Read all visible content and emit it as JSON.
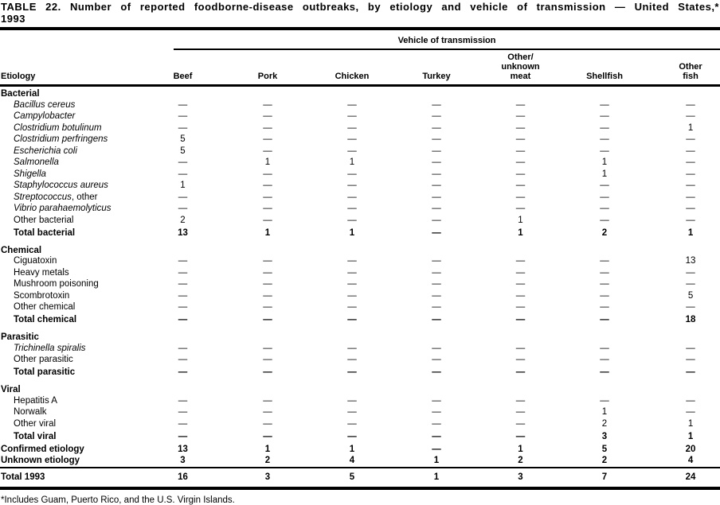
{
  "title": "TABLE 22. Number of reported foodborne-disease outbreaks, by etiology and vehicle of transmission — United States,* 1993",
  "footnote": "*Includes Guam, Puerto Rico, and the U.S. Virgin Islands.",
  "table": {
    "span_header": "Vehicle of transmission",
    "etiology_header": "Etiology",
    "columns": [
      [
        "Beef"
      ],
      [
        "Pork"
      ],
      [
        "Chicken"
      ],
      [
        "Turkey"
      ],
      [
        "Other/",
        "unknown",
        "meat"
      ],
      [
        "Shellfish"
      ],
      [
        "Other",
        "fish"
      ]
    ],
    "sections": [
      {
        "name": "Bacterial",
        "rows": [
          {
            "label": "Bacillus cereus",
            "italic": true,
            "values": [
              "—",
              "—",
              "—",
              "—",
              "—",
              "—",
              "—"
            ]
          },
          {
            "label": "Campylobacter",
            "italic": true,
            "values": [
              "—",
              "—",
              "—",
              "—",
              "—",
              "—",
              "—"
            ]
          },
          {
            "label": "Clostridium botulinum",
            "italic": true,
            "values": [
              "—",
              "—",
              "—",
              "—",
              "—",
              "—",
              "1"
            ]
          },
          {
            "label": "Clostridium perfringens",
            "italic": true,
            "values": [
              "5",
              "—",
              "—",
              "—",
              "—",
              "—",
              "—"
            ]
          },
          {
            "label": "Escherichia coli",
            "italic": true,
            "values": [
              "5",
              "—",
              "—",
              "—",
              "—",
              "—",
              "—"
            ]
          },
          {
            "label": "Salmonella",
            "italic": true,
            "values": [
              "—",
              "1",
              "1",
              "—",
              "—",
              "1",
              "—"
            ]
          },
          {
            "label": "Shigella",
            "italic": true,
            "values": [
              "—",
              "—",
              "—",
              "—",
              "—",
              "1",
              "—"
            ]
          },
          {
            "label": "Staphylococcus aureus",
            "italic": true,
            "values": [
              "1",
              "—",
              "—",
              "—",
              "—",
              "—",
              "—"
            ]
          },
          {
            "label": "Streptococcus",
            "suffix": ", other",
            "italic": true,
            "values": [
              "—",
              "—",
              "—",
              "—",
              "—",
              "—",
              "—"
            ]
          },
          {
            "label": "Vibrio parahaemolyticus",
            "italic": true,
            "values": [
              "—",
              "—",
              "—",
              "—",
              "—",
              "—",
              "—"
            ]
          },
          {
            "label": "Other bacterial",
            "italic": false,
            "values": [
              "2",
              "—",
              "—",
              "—",
              "1",
              "—",
              "—"
            ]
          }
        ],
        "total": {
          "label": "Total bacterial",
          "values": [
            "13",
            "1",
            "1",
            "—",
            "1",
            "2",
            "1"
          ]
        }
      },
      {
        "name": "Chemical",
        "rows": [
          {
            "label": "Ciguatoxin",
            "italic": false,
            "values": [
              "—",
              "—",
              "—",
              "—",
              "—",
              "—",
              "13"
            ]
          },
          {
            "label": "Heavy metals",
            "italic": false,
            "values": [
              "—",
              "—",
              "—",
              "—",
              "—",
              "—",
              "—"
            ]
          },
          {
            "label": "Mushroom poisoning",
            "italic": false,
            "values": [
              "—",
              "—",
              "—",
              "—",
              "—",
              "—",
              "—"
            ]
          },
          {
            "label": "Scombrotoxin",
            "italic": false,
            "values": [
              "—",
              "—",
              "—",
              "—",
              "—",
              "—",
              "5"
            ]
          },
          {
            "label": "Other chemical",
            "italic": false,
            "values": [
              "—",
              "—",
              "—",
              "—",
              "—",
              "—",
              "—"
            ]
          }
        ],
        "total": {
          "label": "Total chemical",
          "values": [
            "—",
            "—",
            "—",
            "—",
            "—",
            "—",
            "18"
          ]
        }
      },
      {
        "name": "Parasitic",
        "rows": [
          {
            "label": "Trichinella spiralis",
            "italic": true,
            "values": [
              "—",
              "—",
              "—",
              "—",
              "—",
              "—",
              "—"
            ]
          },
          {
            "label": "Other parasitic",
            "italic": false,
            "values": [
              "—",
              "—",
              "—",
              "—",
              "—",
              "—",
              "—"
            ]
          }
        ],
        "total": {
          "label": "Total parasitic",
          "values": [
            "—",
            "—",
            "—",
            "—",
            "—",
            "—",
            "—"
          ]
        }
      },
      {
        "name": "Viral",
        "rows": [
          {
            "label": "Hepatitis A",
            "italic": false,
            "values": [
              "—",
              "—",
              "—",
              "—",
              "—",
              "—",
              "—"
            ]
          },
          {
            "label": "Norwalk",
            "italic": false,
            "values": [
              "—",
              "—",
              "—",
              "—",
              "—",
              "1",
              "—"
            ]
          },
          {
            "label": "Other viral",
            "italic": false,
            "values": [
              "—",
              "—",
              "—",
              "—",
              "—",
              "2",
              "1"
            ]
          }
        ],
        "total": {
          "label": "Total viral",
          "values": [
            "—",
            "—",
            "—",
            "—",
            "—",
            "3",
            "1"
          ]
        }
      }
    ],
    "summary_rows": [
      {
        "label": "Confirmed etiology",
        "values": [
          "13",
          "1",
          "1",
          "—",
          "1",
          "5",
          "20"
        ]
      },
      {
        "label": "Unknown etiology",
        "values": [
          "3",
          "2",
          "4",
          "1",
          "2",
          "2",
          "4"
        ]
      }
    ],
    "grand_total": {
      "label": "Total 1993",
      "values": [
        "16",
        "3",
        "5",
        "1",
        "3",
        "7",
        "24"
      ]
    }
  }
}
